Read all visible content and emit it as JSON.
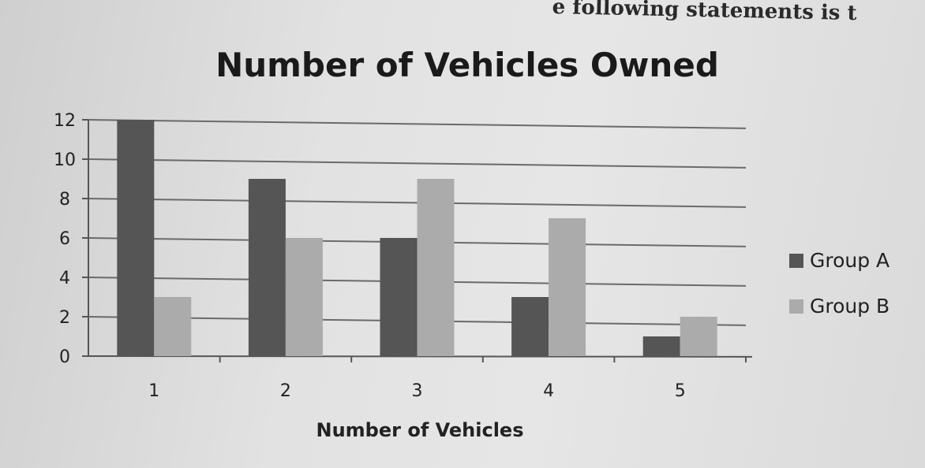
{
  "header_fragment": "e following statements is t",
  "chart_data": {
    "type": "bar",
    "title": "Number of Vehicles Owned",
    "xlabel": "Number of Vehicles",
    "ylabel": "",
    "categories": [
      "1",
      "2",
      "3",
      "4",
      "5"
    ],
    "series": [
      {
        "name": "Group A",
        "values": [
          12,
          9,
          6,
          3,
          1
        ],
        "color": "#555555"
      },
      {
        "name": "Group B",
        "values": [
          3,
          6,
          9,
          7,
          2
        ],
        "color": "#ababab"
      }
    ],
    "ylim": [
      0,
      12
    ],
    "yticks": [
      0,
      2,
      4,
      6,
      8,
      10,
      12
    ],
    "grid": true,
    "legend_position": "right"
  }
}
